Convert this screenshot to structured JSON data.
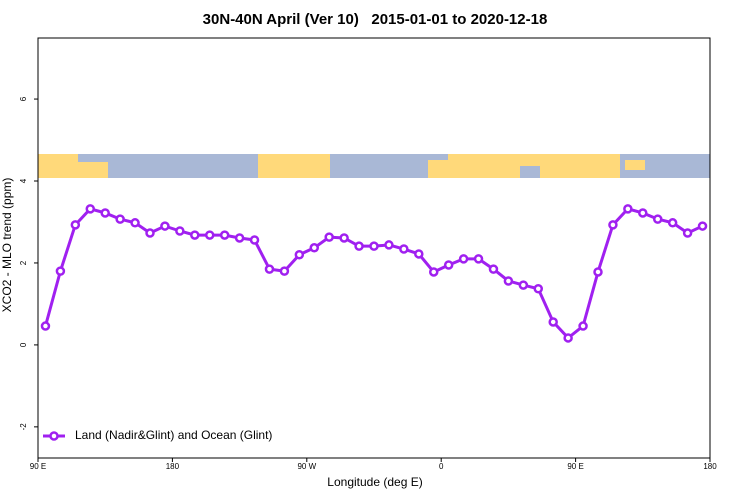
{
  "chart_data": {
    "type": "line",
    "title": "30N-40N April (Ver 10)   2015-01-01 to 2020-12-18",
    "xlabel": "Longitude (deg E)",
    "ylabel": "XCO2 - MLO trend (ppm)",
    "x": [
      95,
      105,
      115,
      125,
      135,
      145,
      155,
      165,
      175,
      185,
      195,
      205,
      215,
      225,
      235,
      245,
      255,
      265,
      275,
      285,
      295,
      305,
      315,
      325,
      335,
      345,
      355,
      365,
      375,
      385,
      395,
      405,
      415,
      425,
      435,
      445,
      455,
      465,
      475,
      485,
      495,
      505,
      515,
      525,
      535
    ],
    "series": [
      {
        "name": "Land (Nadir&Glint) and Ocean (Glint)",
        "color": "#a020f0",
        "values": [
          0.46,
          1.8,
          2.93,
          3.32,
          3.22,
          3.07,
          2.98,
          2.73,
          2.9,
          2.78,
          2.68,
          2.68,
          2.68,
          2.61,
          2.56,
          1.85,
          1.8,
          2.2,
          2.37,
          2.63,
          2.61,
          2.41,
          2.41,
          2.44,
          2.34,
          2.22,
          1.78,
          1.95,
          2.1,
          2.1,
          1.85,
          1.56,
          1.46,
          1.37,
          0.56,
          0.17,
          0.46,
          1.78,
          2.93,
          3.32,
          3.22,
          3.07,
          2.98,
          2.73,
          2.9
        ]
      }
    ],
    "xlim": [
      90,
      540
    ],
    "xticks": [
      {
        "value": 90,
        "label": "90 E"
      },
      180,
      {
        "value": 270,
        "label": "90 W"
      },
      {
        "value": 360,
        "label": "0"
      },
      {
        "value": 450,
        "label": "90 E"
      },
      {
        "value": 540,
        "label": "180"
      }
    ],
    "ylim": [
      -2.76,
      7.49
    ],
    "yticks": [
      -2,
      0,
      2,
      4,
      6
    ],
    "legend": "bottom-left"
  }
}
